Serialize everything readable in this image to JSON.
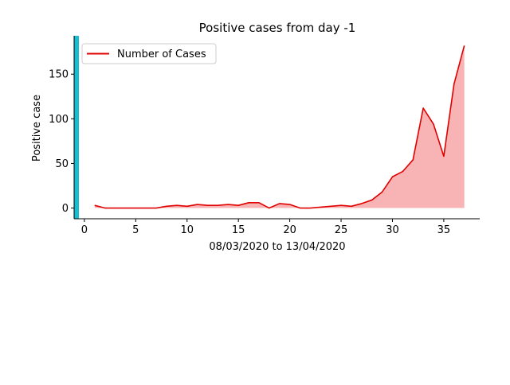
{
  "chart_data": {
    "type": "area",
    "title": "Positive cases from day -1",
    "xlabel": "08/03/2020  to  13/04/2020",
    "ylabel": "Positive case",
    "xlim": [
      -1,
      38.5
    ],
    "ylim": [
      -12,
      193
    ],
    "xticks": [
      0,
      5,
      10,
      15,
      20,
      25,
      30,
      35
    ],
    "yticks": [
      0,
      50,
      100,
      150
    ],
    "legend_position": "upper-left",
    "grid": false,
    "colors": {
      "line": "#e00000",
      "fill": "#f8b4b4",
      "left_bar": "#17becf"
    },
    "series": [
      {
        "name": "Number of Cases",
        "x": [
          1,
          2,
          3,
          4,
          5,
          6,
          7,
          8,
          9,
          10,
          11,
          12,
          13,
          14,
          15,
          16,
          17,
          18,
          19,
          20,
          21,
          22,
          23,
          24,
          25,
          26,
          27,
          28,
          29,
          30,
          31,
          32,
          33,
          34,
          35,
          36,
          37
        ],
        "y": [
          3,
          0,
          0,
          0,
          0,
          0,
          0,
          2,
          3,
          2,
          4,
          3,
          3,
          4,
          3,
          6,
          6,
          0,
          5,
          4,
          0,
          0,
          1,
          2,
          3,
          2,
          5,
          9,
          18,
          35,
          41,
          54,
          112,
          94,
          58,
          139,
          182
        ]
      }
    ]
  }
}
